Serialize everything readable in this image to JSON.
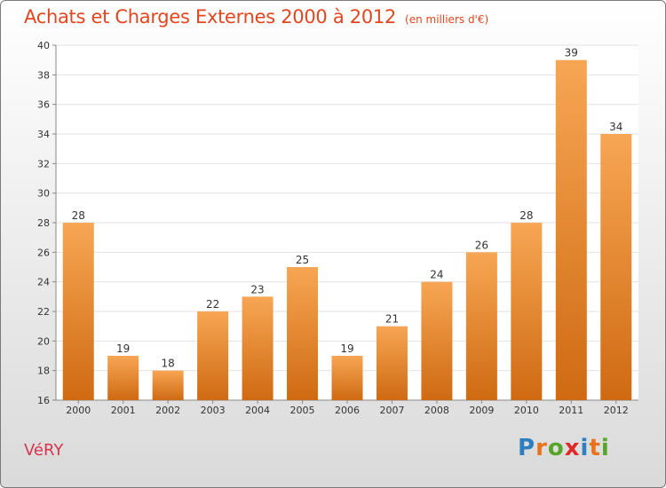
{
  "header": {
    "title": "Achats et Charges Externes 2000 à 2012",
    "unit": "(en milliers d'€)"
  },
  "commune": "VéRY",
  "logo": {
    "text": "Proxiti",
    "letters": [
      {
        "ch": "P",
        "color": "#2e7fc1"
      },
      {
        "ch": "r",
        "color": "#e8731c"
      },
      {
        "ch": "o",
        "color": "#54a52a"
      },
      {
        "ch": "x",
        "color": "#e02a2a"
      },
      {
        "ch": "i",
        "color": "#2e7fc1"
      },
      {
        "ch": "t",
        "color": "#e8731c"
      },
      {
        "ch": "i",
        "color": "#54a52a"
      }
    ]
  },
  "colors": {
    "title": "#e3461f",
    "commune": "#d8344c",
    "bar_top": "#f7a654",
    "bar_bottom": "#cf6a12"
  },
  "chart_data": {
    "type": "bar",
    "title": "Achats et Charges Externes 2000 à 2012",
    "subtitle": "(en milliers d'€)",
    "categories": [
      "2000",
      "2001",
      "2002",
      "2003",
      "2004",
      "2005",
      "2006",
      "2007",
      "2008",
      "2009",
      "2010",
      "2011",
      "2012"
    ],
    "values": [
      28,
      19,
      18,
      22,
      23,
      25,
      19,
      21,
      24,
      26,
      28,
      39,
      34
    ],
    "ylim": [
      16,
      40
    ],
    "yticks": [
      16,
      18,
      20,
      22,
      24,
      26,
      28,
      30,
      32,
      34,
      36,
      38,
      40
    ],
    "grid": true,
    "data_labels": true
  }
}
